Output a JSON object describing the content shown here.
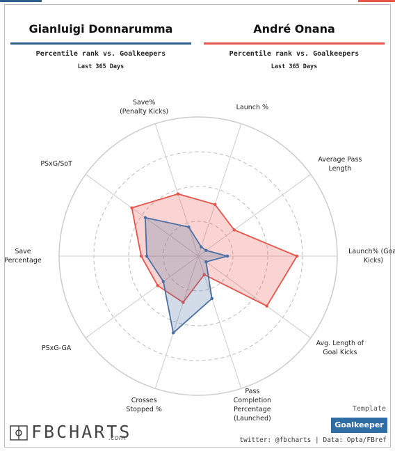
{
  "header": {
    "left": {
      "name": "Gianluigi Donnarumma",
      "color": "#2e5e8c",
      "subtitle": "Percentile rank vs. Goalkeepers",
      "period": "Last 365 Days"
    },
    "right": {
      "name": "André Onana",
      "color": "#e8534a",
      "subtitle": "Percentile rank vs. Goalkeepers",
      "period": "Last 365 Days"
    }
  },
  "chart_data": {
    "type": "radar",
    "categories": [
      "Launch% (Goal\nKicks)",
      "Average Pass\nLength",
      "Launch %",
      "Save%\n(Penalty Kicks)",
      "PSxG/SoT",
      "Save\nPercentage",
      "PSxG-GA",
      "Crosses\nStopped %",
      "Pass\nCompletion\nPercentage\n(Launched)",
      "Avg. Length of\nGoal Kicks"
    ],
    "rlim": [
      0,
      100
    ],
    "rticks": [
      25,
      50,
      75,
      100
    ],
    "series": [
      {
        "name": "André Onana",
        "color": "#e8534a",
        "values": [
          71,
          32,
          39,
          47,
          59,
          41,
          36,
          35,
          14,
          61
        ]
      },
      {
        "name": "Gianluigi Donnarumma",
        "color": "#4a6fa5",
        "values": [
          21,
          7,
          7,
          22,
          47,
          37,
          31,
          58,
          32,
          7
        ]
      }
    ]
  },
  "footer": {
    "logo": "FBCHARTS",
    "logo_suffix": ".com",
    "template_label": "Template",
    "template": "Goalkeeper",
    "credits": "twitter: @fbcharts | Data: Opta/FBref"
  }
}
